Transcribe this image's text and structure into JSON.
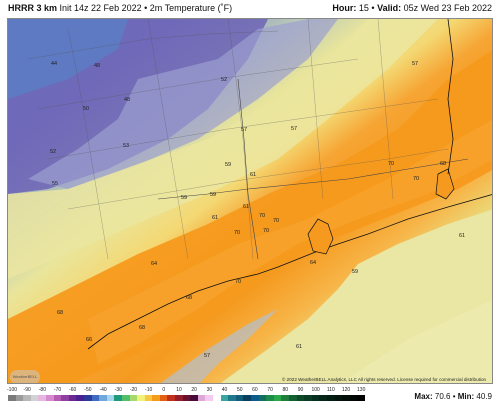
{
  "header": {
    "model": "HRRR 3 km",
    "init": "Init 14z 22 Feb 2022 • 2m Temperature (˚F)",
    "hour_label": "Hour:",
    "hour": "15",
    "valid_label": "Valid:",
    "valid": "05z Wed 23 Feb 2022"
  },
  "map": {
    "copyright": "© 2022 WeatherBELL Analytics, LLC All rights reserved. License required for commercial distribution",
    "logo_text": "WeatherBELL",
    "labels": [
      {
        "text": "44"
      },
      {
        "text": "48"
      },
      {
        "text": "52"
      },
      {
        "text": "57"
      },
      {
        "text": "50"
      },
      {
        "text": "48"
      },
      {
        "text": "57"
      },
      {
        "text": "57"
      },
      {
        "text": "52"
      },
      {
        "text": "53"
      },
      {
        "text": "59"
      },
      {
        "text": "61"
      },
      {
        "text": "70"
      },
      {
        "text": "68"
      },
      {
        "text": "55"
      },
      {
        "text": "70"
      },
      {
        "text": "59"
      },
      {
        "text": "59"
      },
      {
        "text": "61"
      },
      {
        "text": "61"
      },
      {
        "text": "70"
      },
      {
        "text": "70"
      },
      {
        "text": "70"
      },
      {
        "text": "70"
      },
      {
        "text": "61"
      },
      {
        "text": "64"
      },
      {
        "text": "64"
      },
      {
        "text": "59"
      },
      {
        "text": "70"
      },
      {
        "text": "68"
      },
      {
        "text": "68"
      },
      {
        "text": "68"
      },
      {
        "text": "66"
      },
      {
        "text": "57"
      },
      {
        "text": "61"
      }
    ]
  },
  "footer": {
    "ticks": [
      "-100",
      "-90",
      "-80",
      "-70",
      "-60",
      "-50",
      "-40",
      "-30",
      "-20",
      "-10",
      "0",
      "10",
      "20",
      "30",
      "40",
      "50",
      "60",
      "70",
      "80",
      "90",
      "100",
      "110",
      "120",
      "130"
    ],
    "colors": [
      "#7a7a7a",
      "#9a9a9a",
      "#b7b7b7",
      "#d2d2d2",
      "#e6b6e0",
      "#d58ad0",
      "#b65cb0",
      "#8f3f9f",
      "#6b2a8f",
      "#4b2090",
      "#2c3a9c",
      "#3f6cc0",
      "#6ea8dc",
      "#a7d6ec",
      "#1f9a7a",
      "#4fbf6a",
      "#a6d96a",
      "#f2f27a",
      "#f7c743",
      "#f59c1a",
      "#e35f14",
      "#c0301c",
      "#951c2a",
      "#6a1030",
      "#4a0a3a",
      "#dca6d6",
      "#f5c9f0",
      "#ffffff",
      "#3aa6a0",
      "#1e7a8a",
      "#115d7a",
      "#0a3f5d",
      "#0b5c8c",
      "#146f5e",
      "#1c8c4c",
      "#2aa84a",
      "#1d7f3b",
      "#136033",
      "#0e4a2a",
      "#0a3d24",
      "#083020",
      "#062618",
      "#041d12",
      "#03150d",
      "#020e08",
      "#010704",
      "#000000"
    ],
    "max_label": "Max:",
    "max": "70.6",
    "min_label": "Min:",
    "min": "40.9"
  }
}
